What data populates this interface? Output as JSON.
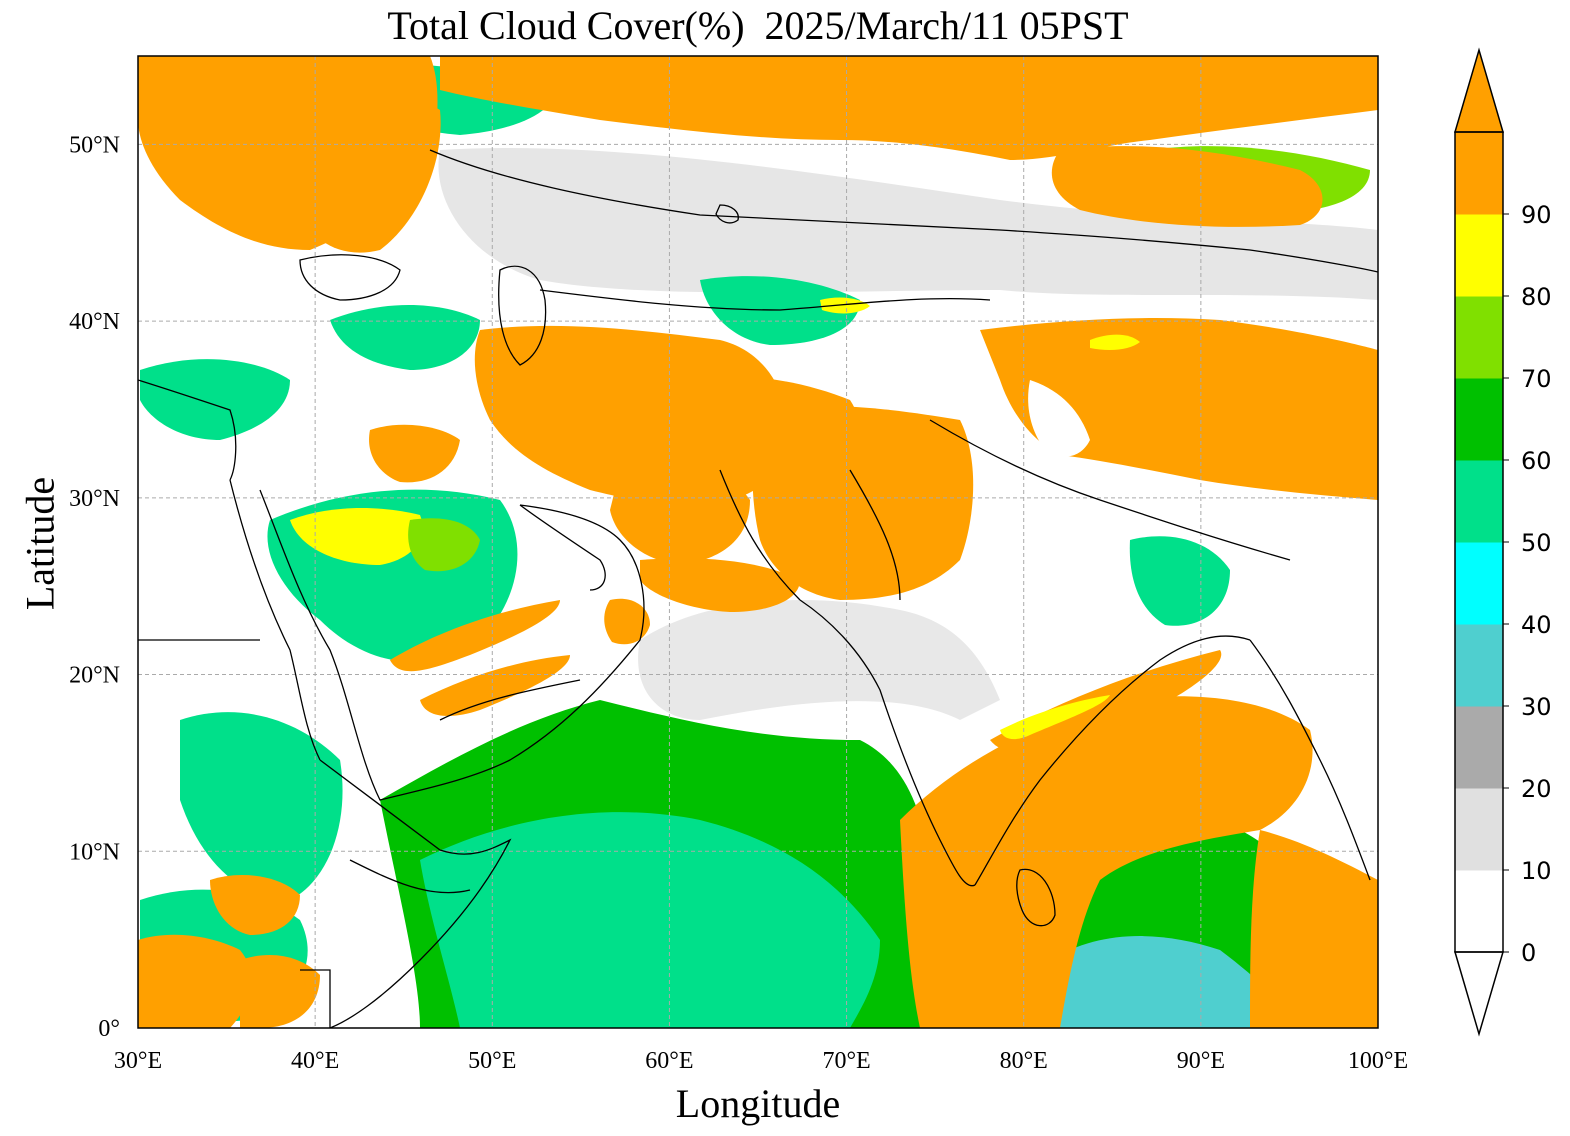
{
  "title": "Total Cloud Cover(%)  2025/March/11 05PST",
  "xlabel": "Longitude",
  "ylabel": "Latitude",
  "x_ticks": [
    "30°E",
    "40°E",
    "50°E",
    "60°E",
    "70°E",
    "80°E",
    "90°E",
    "100°E"
  ],
  "y_ticks": [
    "0°",
    "10°N",
    "20°N",
    "30°N",
    "40°N",
    "50°N"
  ],
  "colorbar": {
    "ticks": [
      "0",
      "10",
      "20",
      "30",
      "40",
      "50",
      "60",
      "70",
      "80",
      "90"
    ],
    "colors": [
      "#ffffff",
      "#e0e0e0",
      "#aaaaaa",
      "#4fcfcf",
      "#00ffff",
      "#00e08a",
      "#00c000",
      "#80e000",
      "#ffff00",
      "#ffa000"
    ],
    "extend": "both"
  },
  "chart_data": {
    "type": "heatmap",
    "title": "Total Cloud Cover(%)  2025/March/11 05PST",
    "xlabel": "Longitude",
    "ylabel": "Latitude",
    "xlim": [
      30,
      100
    ],
    "ylim": [
      0,
      55
    ],
    "x_ticks": [
      30,
      40,
      50,
      60,
      70,
      80,
      90,
      100
    ],
    "y_ticks": [
      0,
      10,
      20,
      30,
      40,
      50
    ],
    "grid": true,
    "levels": [
      0,
      10,
      20,
      30,
      40,
      50,
      60,
      70,
      80,
      90
    ],
    "colors": [
      "#ffffff",
      "#e0e0e0",
      "#aaaaaa",
      "#4fcfcf",
      "#00ffff",
      "#00e08a",
      "#00c000",
      "#80e000",
      "#ffff00",
      "#ffa000"
    ]
  }
}
